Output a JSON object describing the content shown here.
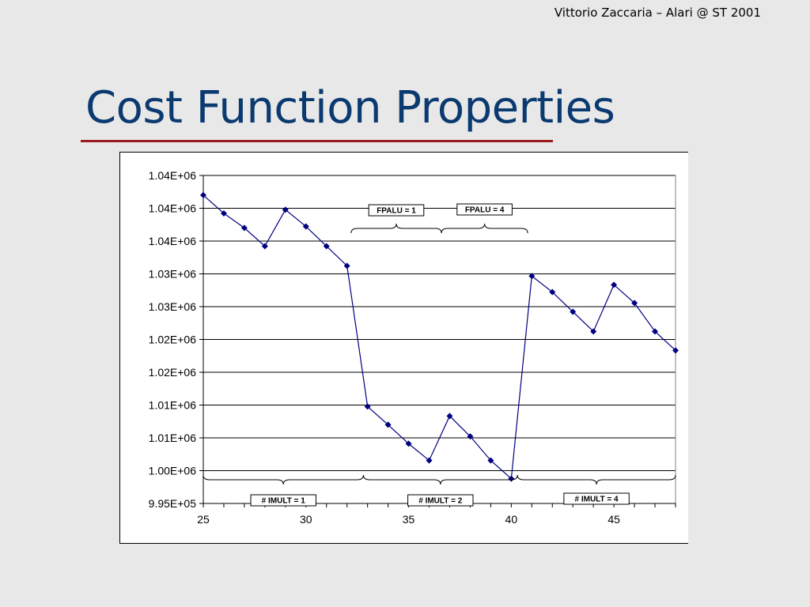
{
  "header": {
    "author_line": "Vittorio Zaccaria – Alari @ ST 2001"
  },
  "slide": {
    "title": "Cost Function Properties"
  },
  "colors": {
    "title": "#0b3a70",
    "rule": "#9b1c1c",
    "series": "#000080",
    "background": "#e8e8e8"
  },
  "chart_data": {
    "type": "line",
    "title": "",
    "xlabel": "",
    "ylabel": "",
    "xlim": [
      25,
      48
    ],
    "ylim": [
      995000,
      1040000
    ],
    "x_ticks": [
      25,
      30,
      35,
      40,
      45
    ],
    "y_tick_labels": [
      "9.95E+05",
      "1.00E+06",
      "1.01E+06",
      "1.01E+06",
      "1.02E+06",
      "1.02E+06",
      "1.03E+06",
      "1.03E+06",
      "1.04E+06",
      "1.04E+06",
      "1.04E+06"
    ],
    "grid": "horizontal",
    "legend": "none",
    "series": [
      {
        "marker": "diamond",
        "x": [
          25,
          26,
          27,
          28,
          29,
          30,
          31,
          32,
          33,
          34,
          35,
          36,
          37,
          38,
          39,
          40,
          41,
          42,
          43,
          44,
          45,
          46,
          47,
          48
        ],
        "values": [
          1037300,
          1034800,
          1032800,
          1030300,
          1035300,
          1033000,
          1030300,
          1027600,
          1008300,
          1005800,
          1003200,
          1000900,
          1007000,
          1004200,
          1000900,
          998400,
          1026200,
          1024000,
          1021300,
          1018600,
          1025000,
          1022500,
          1018600,
          1016000
        ]
      }
    ],
    "annotations": [
      {
        "label": "FPALU = 1",
        "from": 32.2,
        "to": 36.6,
        "position": "top"
      },
      {
        "label": "FPALU = 4",
        "from": 36.6,
        "to": 40.8,
        "position": "top"
      },
      {
        "label": "# IMULT = 1",
        "from": 25,
        "to": 32.8,
        "position": "bottom"
      },
      {
        "label": "# IMULT = 2",
        "from": 32.8,
        "to": 40.3,
        "position": "bottom"
      },
      {
        "label": "# IMULT = 4",
        "from": 40.3,
        "to": 48,
        "position": "bottom"
      }
    ]
  }
}
